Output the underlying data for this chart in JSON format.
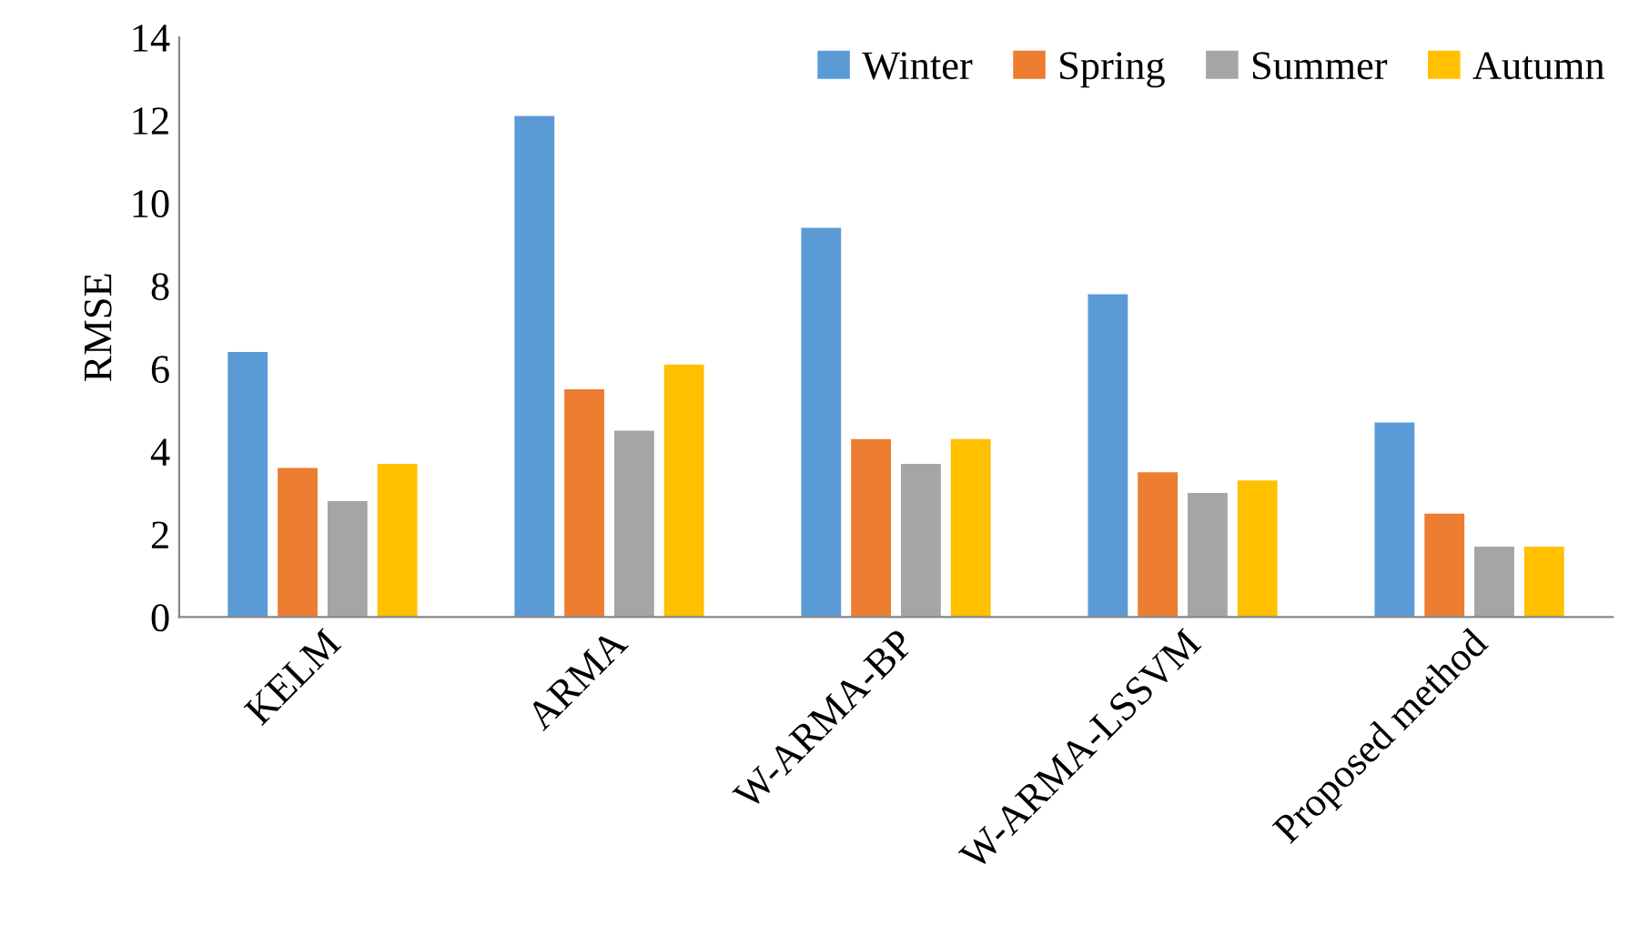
{
  "chart_data": {
    "type": "bar",
    "ylabel": "RMSE",
    "categories": [
      "KELM",
      "ARMA",
      "W-ARMA-BP",
      "W-ARMA-LSSVM",
      "Proposed method"
    ],
    "series": [
      {
        "name": "Winter",
        "color": "#5b9bd5",
        "values": [
          6.4,
          12.1,
          9.4,
          7.8,
          4.7
        ]
      },
      {
        "name": "Spring",
        "color": "#ed7d31",
        "values": [
          3.6,
          5.5,
          4.3,
          3.5,
          2.5
        ]
      },
      {
        "name": "Summer",
        "color": "#a5a5a5",
        "values": [
          2.8,
          4.5,
          3.7,
          3.0,
          1.7
        ]
      },
      {
        "name": "Autumn",
        "color": "#ffc000",
        "values": [
          3.7,
          6.1,
          4.3,
          3.3,
          1.7
        ]
      }
    ],
    "ylim": [
      0,
      14
    ],
    "yticks": [
      0,
      2,
      4,
      6,
      8,
      10,
      12,
      14
    ],
    "grid": false,
    "legend": "top right"
  }
}
